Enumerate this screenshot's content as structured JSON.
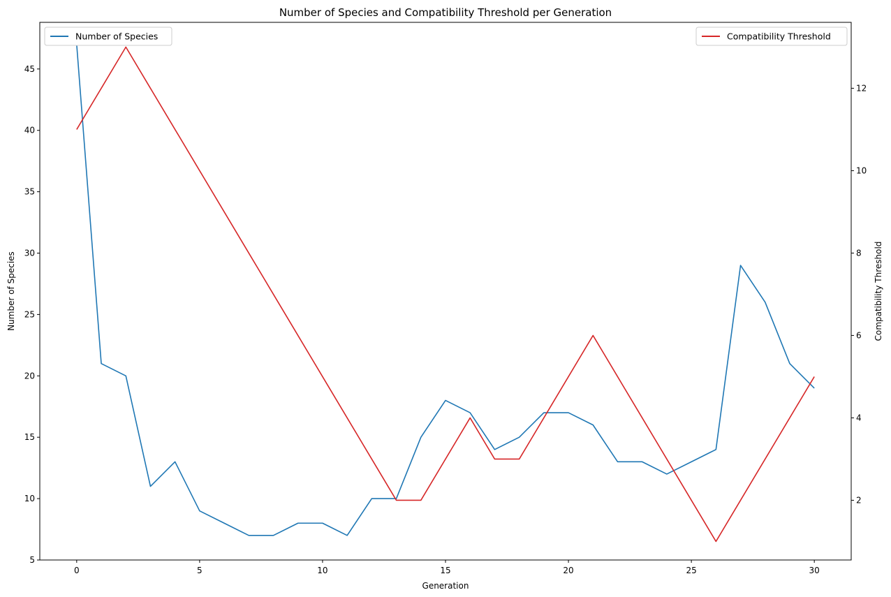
{
  "chart_data": {
    "type": "line",
    "title": "Number of Species and Compatibility Threshold per Generation",
    "xlabel": "Generation",
    "ylabel_left": "Number of Species",
    "ylabel_right": "Compatibility Threshold",
    "x": [
      0,
      1,
      2,
      3,
      4,
      5,
      6,
      7,
      8,
      9,
      10,
      11,
      12,
      13,
      14,
      15,
      16,
      17,
      18,
      19,
      20,
      21,
      22,
      23,
      24,
      25,
      26,
      27,
      28,
      29,
      30
    ],
    "xlim": [
      -1.5,
      31.5
    ],
    "ylim_left": [
      5,
      48.8
    ],
    "ylim_right": [
      0.55,
      13.6
    ],
    "xticks": [
      0,
      5,
      10,
      15,
      20,
      25,
      30
    ],
    "yticks_left": [
      5,
      10,
      15,
      20,
      25,
      30,
      35,
      40,
      45
    ],
    "yticks_right": [
      2,
      4,
      6,
      8,
      10,
      12
    ],
    "grid": false,
    "series": [
      {
        "name": "Number of Species",
        "axis": "left",
        "color": "#1f77b4",
        "values": [
          47,
          21,
          20,
          11,
          13,
          9,
          8,
          7,
          7,
          8,
          8,
          7,
          10,
          10,
          15,
          18,
          17,
          14,
          15,
          17,
          17,
          16,
          13,
          13,
          12,
          13,
          14,
          29,
          26,
          21,
          19
        ],
        "legend_position": "upper left"
      },
      {
        "name": "Compatibility Threshold",
        "axis": "right",
        "color": "#d62728",
        "values": [
          11,
          12,
          13,
          12,
          11,
          10,
          9,
          8,
          7,
          6,
          5,
          4,
          3,
          2,
          2,
          3,
          4,
          3,
          3,
          4,
          5,
          6,
          5,
          4,
          3,
          2,
          1,
          2,
          3,
          4,
          5
        ],
        "legend_position": "upper right"
      }
    ]
  }
}
